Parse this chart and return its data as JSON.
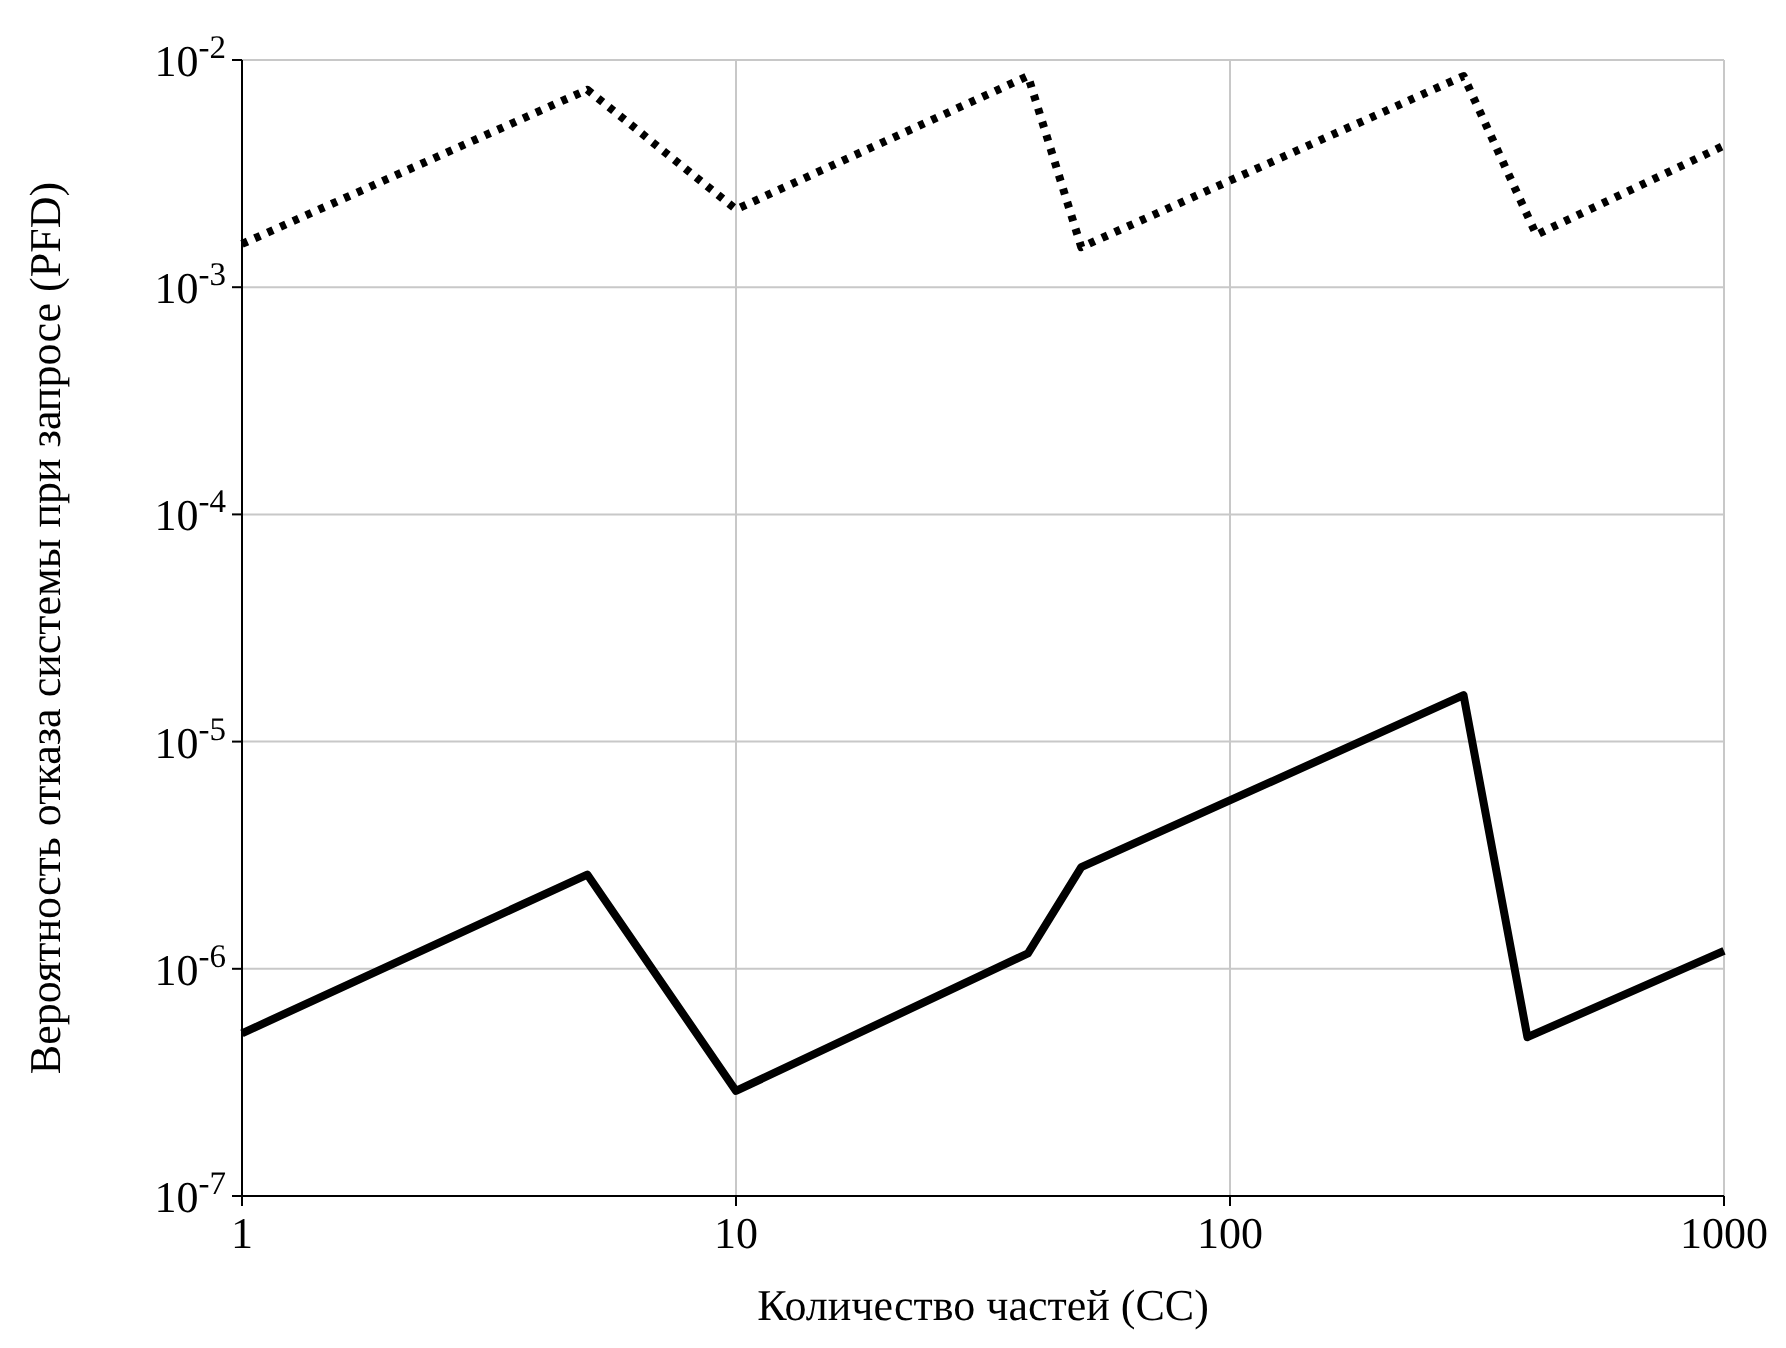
{
  "chart_data": {
    "type": "line",
    "xlabel": "Количество частей (CC)",
    "ylabel": "Вероятность отказа системы при запросе (PFD)",
    "log": "xy",
    "grid": true,
    "xlim": [
      1,
      1000
    ],
    "ylim": [
      1e-07,
      0.01
    ],
    "xticks": [
      1,
      10,
      100,
      1000
    ],
    "yticks": [
      {
        "value": 1e-07,
        "label": "10$^{-7}$"
      },
      {
        "value": 1e-06,
        "label": "10$^{-6}$"
      },
      {
        "value": 1e-05,
        "label": "10$^{-5}$"
      },
      {
        "value": 0.0001,
        "label": "10$^{-4}$"
      },
      {
        "value": 0.001,
        "label": "10$^{-3}$"
      },
      {
        "value": 0.01,
        "label": "10$^{-2}$"
      }
    ],
    "marker": "none",
    "series": [
      {
        "color": "#000000",
        "line_style": "dotted",
        "x": [
          1,
          5,
          10,
          39,
          50,
          297,
          417,
          1000
        ],
        "values": [
          0.00155,
          0.0074,
          0.0022,
          0.0085,
          0.0015,
          0.0085,
          0.0017,
          0.0042
        ]
      },
      {
        "color": "#000000",
        "line_style": "solid",
        "x": [
          1,
          5,
          10,
          39,
          50,
          297,
          400,
          1000
        ],
        "values": [
          5.2e-07,
          2.6e-06,
          2.9e-07,
          1.17e-06,
          2.8e-06,
          1.6e-05,
          5e-07,
          1.2e-06
        ]
      }
    ]
  }
}
